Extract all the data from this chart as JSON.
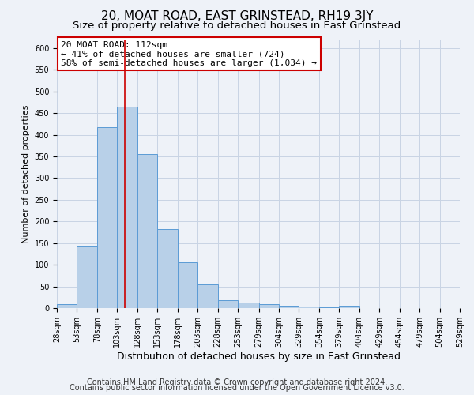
{
  "title": "20, MOAT ROAD, EAST GRINSTEAD, RH19 3JY",
  "subtitle": "Size of property relative to detached houses in East Grinstead",
  "xlabel": "Distribution of detached houses by size in East Grinstead",
  "ylabel": "Number of detached properties",
  "bin_labels": [
    "28sqm",
    "53sqm",
    "78sqm",
    "103sqm",
    "128sqm",
    "153sqm",
    "178sqm",
    "203sqm",
    "228sqm",
    "253sqm",
    "279sqm",
    "304sqm",
    "329sqm",
    "354sqm",
    "379sqm",
    "404sqm",
    "429sqm",
    "454sqm",
    "479sqm",
    "504sqm",
    "529sqm"
  ],
  "bar_values": [
    10,
    142,
    418,
    465,
    355,
    183,
    105,
    55,
    18,
    13,
    10,
    6,
    3,
    2,
    5,
    0,
    0,
    0,
    0,
    0
  ],
  "bin_edges": [
    28,
    53,
    78,
    103,
    128,
    153,
    178,
    203,
    228,
    253,
    279,
    304,
    329,
    354,
    379,
    404,
    429,
    454,
    479,
    504,
    529
  ],
  "bar_color": "#b8d0e8",
  "bar_edge_color": "#5b9bd5",
  "property_size": 112,
  "vline_color": "#cc0000",
  "ylim": [
    0,
    620
  ],
  "yticks": [
    0,
    50,
    100,
    150,
    200,
    250,
    300,
    350,
    400,
    450,
    500,
    550,
    600
  ],
  "annotation_title": "20 MOAT ROAD: 112sqm",
  "annotation_line1": "← 41% of detached houses are smaller (724)",
  "annotation_line2": "58% of semi-detached houses are larger (1,034) →",
  "annotation_box_color": "#ffffff",
  "annotation_box_edge": "#cc0000",
  "footer1": "Contains HM Land Registry data © Crown copyright and database right 2024.",
  "footer2": "Contains public sector information licensed under the Open Government Licence v3.0.",
  "grid_color": "#c8d4e4",
  "background_color": "#eef2f8",
  "title_fontsize": 11,
  "subtitle_fontsize": 9.5,
  "xlabel_fontsize": 9,
  "ylabel_fontsize": 8,
  "footer_fontsize": 7,
  "annot_fontsize": 8,
  "tick_fontsize": 7
}
